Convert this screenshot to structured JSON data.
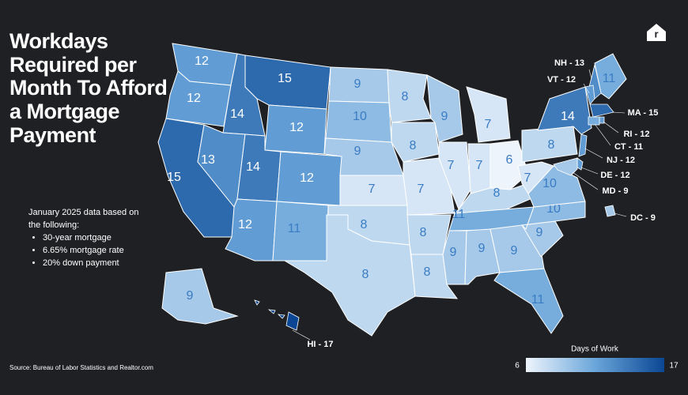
{
  "header": {
    "title": "Workdays Required per Month To Afford a Mortgage Payment"
  },
  "notes": {
    "intro": "January 2025 data based on the following:",
    "items": [
      "30-year mortgage",
      "6.65% mortgage rate",
      "20% down payment"
    ]
  },
  "source": "Source: Bureau of Labor Statistics and Realtor.com",
  "map": {
    "states": {
      "values": [
        12,
        12,
        15,
        14,
        13,
        15,
        12,
        14,
        12,
        12,
        11,
        9,
        10,
        9,
        7,
        8,
        8,
        8,
        8,
        7,
        8,
        8,
        9,
        7,
        7,
        7,
        6,
        8,
        11,
        9,
        9,
        9,
        11,
        9,
        10,
        10,
        7,
        8,
        14,
        11,
        9
      ]
    },
    "callouts": [
      {
        "label": "NH - 13",
        "value": 13
      },
      {
        "label": "VT - 12",
        "value": 12
      },
      {
        "label": "MA - 15",
        "value": 15
      },
      {
        "label": "RI - 12",
        "value": 12
      },
      {
        "label": "CT - 11",
        "value": 11
      },
      {
        "label": "NJ - 12",
        "value": 12
      },
      {
        "label": "DE - 12",
        "value": 12
      },
      {
        "label": "MD - 9",
        "value": 9
      },
      {
        "label": "DC - 9",
        "value": 9
      },
      {
        "label": "HI - 17",
        "value": 17
      }
    ]
  },
  "legend": {
    "title": "Days of Work",
    "min": 6,
    "max": 17,
    "colors": [
      "#eef4fc",
      "#6aa6da",
      "#0a4693"
    ]
  }
}
